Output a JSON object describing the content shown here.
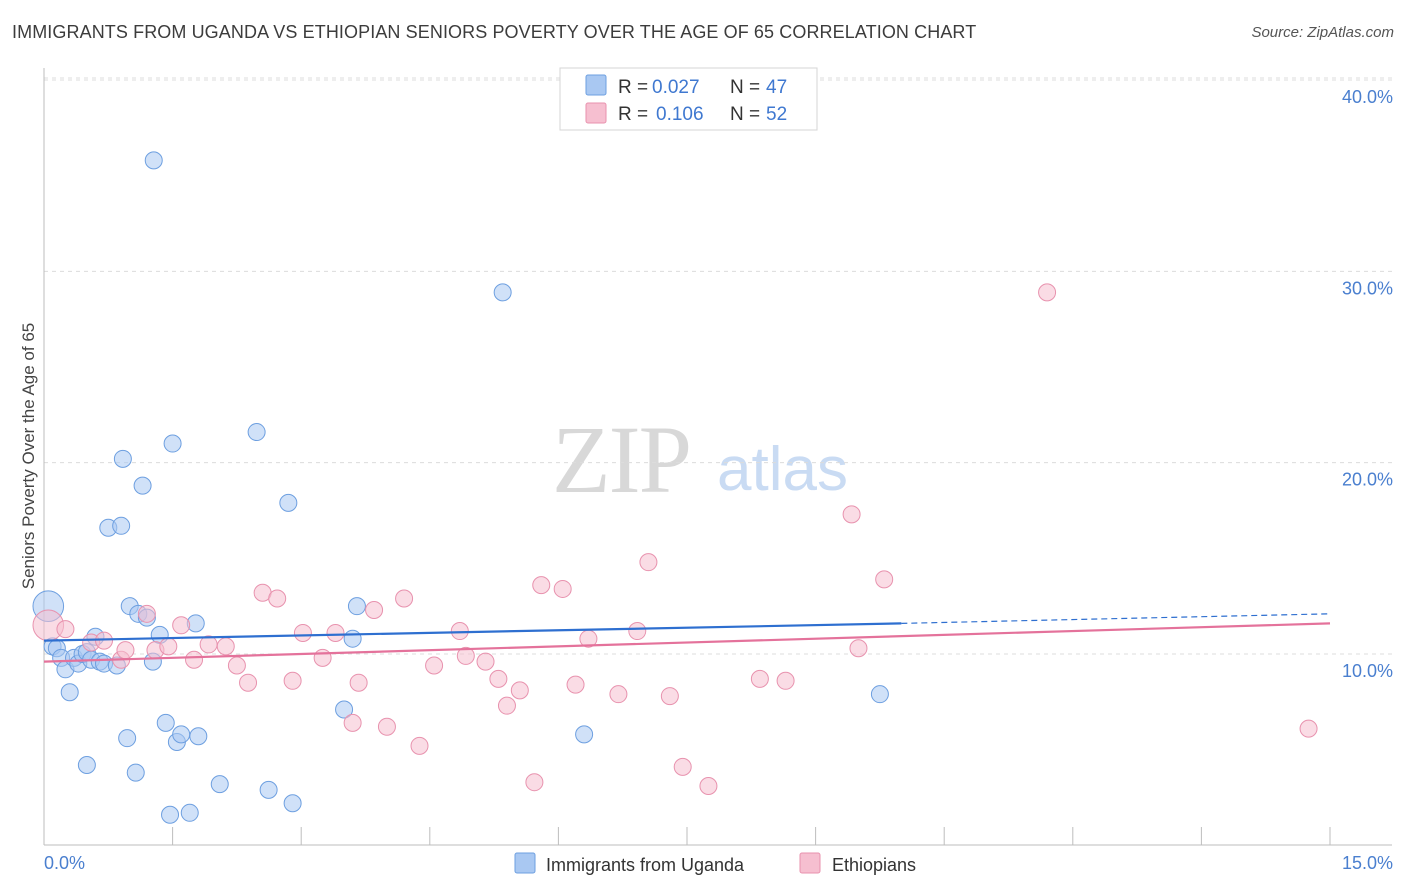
{
  "title": "IMMIGRANTS FROM UGANDA VS ETHIOPIAN SENIORS POVERTY OVER THE AGE OF 65 CORRELATION CHART",
  "source": "Source: ZipAtlas.com",
  "watermark": {
    "part1": "ZIP",
    "part2": "atlas"
  },
  "colors": {
    "blue_fill": "#a9c8f2",
    "blue_stroke": "#6d9fe0",
    "blue_line": "#2e6fd0",
    "pink_fill": "#f6bfd0",
    "pink_stroke": "#e892ae",
    "pink_line": "#e4729b",
    "tick_text": "#4a7fcf",
    "grid": "#dcdcdc"
  },
  "legend": {
    "rows": [
      {
        "r_label": "R =",
        "r_value": "0.027",
        "n_label": "N =",
        "n_value": "47"
      },
      {
        "r_label": "R =",
        "r_value": "0.106",
        "n_label": "N =",
        "n_value": "52"
      }
    ]
  },
  "bottom_legend": {
    "series1": "Immigrants from Uganda",
    "series2": "Ethiopians"
  },
  "chart_data": {
    "type": "scatter",
    "title": "IMMIGRANTS FROM UGANDA VS ETHIOPIAN SENIORS POVERTY OVER THE AGE OF 65 CORRELATION CHART",
    "xlabel": "",
    "ylabel": "Seniors Poverty Over the Age of 65",
    "xlim": [
      0,
      15
    ],
    "ylim": [
      0,
      41.5
    ],
    "x_tick_labels": [
      {
        "value": 0,
        "label": "0.0%"
      },
      {
        "value": 15,
        "label": "15.0%"
      }
    ],
    "x_minor_ticks": [
      1.5,
      3.0,
      4.5,
      6.0,
      7.5,
      9.0,
      10.5,
      12.0,
      13.5,
      15.0
    ],
    "y_ticks": [
      {
        "value": 10,
        "label": "10.0%"
      },
      {
        "value": 20,
        "label": "20.0%"
      },
      {
        "value": 30,
        "label": "30.0%"
      },
      {
        "value": 40,
        "label": "40.0%"
      }
    ],
    "grid": true,
    "series": [
      {
        "name": "Immigrants from Uganda",
        "color": "blue",
        "trend": {
          "x0": 0,
          "y0": 10.7,
          "x1": 10.0,
          "y1": 11.6,
          "dash_x1": 15.0,
          "dash_y1": 12.1
        },
        "points": [
          [
            0.05,
            12.5,
            1.8
          ],
          [
            0.1,
            10.4,
            1
          ],
          [
            0.15,
            10.3,
            1
          ],
          [
            0.2,
            9.8,
            1
          ],
          [
            0.25,
            9.2,
            1
          ],
          [
            0.3,
            8.0,
            1
          ],
          [
            0.35,
            9.8,
            1
          ],
          [
            0.4,
            9.5,
            1
          ],
          [
            0.45,
            10.0,
            1
          ],
          [
            0.5,
            10.1,
            1
          ],
          [
            0.5,
            4.2,
            1
          ],
          [
            0.55,
            9.7,
            1
          ],
          [
            0.6,
            10.9,
            1
          ],
          [
            0.65,
            9.6,
            1
          ],
          [
            0.7,
            9.5,
            1
          ],
          [
            0.75,
            16.6,
            1
          ],
          [
            0.85,
            9.4,
            1
          ],
          [
            0.9,
            16.7,
            1
          ],
          [
            0.92,
            20.2,
            1
          ],
          [
            0.97,
            5.6,
            1
          ],
          [
            1.0,
            12.5,
            1
          ],
          [
            1.07,
            3.8,
            1
          ],
          [
            1.1,
            12.1,
            1
          ],
          [
            1.15,
            18.8,
            1
          ],
          [
            1.2,
            11.9,
            1
          ],
          [
            1.27,
            9.6,
            1
          ],
          [
            1.28,
            35.8,
            1
          ],
          [
            1.35,
            11.0,
            1
          ],
          [
            1.42,
            6.4,
            1
          ],
          [
            1.47,
            1.6,
            1
          ],
          [
            1.5,
            21.0,
            1
          ],
          [
            1.55,
            5.4,
            1
          ],
          [
            1.6,
            5.8,
            1
          ],
          [
            1.7,
            1.7,
            1
          ],
          [
            1.77,
            11.6,
            1
          ],
          [
            1.8,
            5.7,
            1
          ],
          [
            2.05,
            3.2,
            1
          ],
          [
            2.48,
            21.6,
            1
          ],
          [
            2.62,
            2.9,
            1
          ],
          [
            2.85,
            17.9,
            1
          ],
          [
            2.9,
            2.2,
            1
          ],
          [
            3.5,
            7.1,
            1
          ],
          [
            3.6,
            10.8,
            1
          ],
          [
            3.65,
            12.5,
            1
          ],
          [
            5.35,
            28.9,
            1
          ],
          [
            6.3,
            5.8,
            1
          ],
          [
            9.75,
            7.9,
            1
          ]
        ]
      },
      {
        "name": "Ethiopians",
        "color": "pink",
        "trend": {
          "x0": 0,
          "y0": 9.6,
          "x1": 15.0,
          "y1": 11.6
        },
        "points": [
          [
            0.05,
            11.5,
            1.8
          ],
          [
            0.25,
            11.3,
            1
          ],
          [
            0.55,
            10.6,
            1
          ],
          [
            0.7,
            10.7,
            1
          ],
          [
            0.9,
            9.7,
            1
          ],
          [
            0.95,
            10.2,
            1
          ],
          [
            1.2,
            12.1,
            1
          ],
          [
            1.3,
            10.2,
            1
          ],
          [
            1.45,
            10.4,
            1
          ],
          [
            1.6,
            11.5,
            1
          ],
          [
            1.75,
            9.7,
            1
          ],
          [
            1.92,
            10.5,
            1
          ],
          [
            2.12,
            10.4,
            1
          ],
          [
            2.25,
            9.4,
            1
          ],
          [
            2.38,
            8.5,
            1
          ],
          [
            2.55,
            13.2,
            1
          ],
          [
            2.72,
            12.9,
            1
          ],
          [
            2.9,
            8.6,
            1
          ],
          [
            3.02,
            11.1,
            1
          ],
          [
            3.25,
            9.8,
            1
          ],
          [
            3.4,
            11.1,
            1
          ],
          [
            3.6,
            6.4,
            1
          ],
          [
            3.67,
            8.5,
            1
          ],
          [
            3.85,
            12.3,
            1
          ],
          [
            4.0,
            6.2,
            1
          ],
          [
            4.2,
            12.9,
            1
          ],
          [
            4.38,
            5.2,
            1
          ],
          [
            4.55,
            9.4,
            1
          ],
          [
            4.85,
            11.2,
            1
          ],
          [
            4.92,
            9.9,
            1
          ],
          [
            5.15,
            9.6,
            1
          ],
          [
            5.3,
            8.7,
            1
          ],
          [
            5.4,
            7.3,
            1
          ],
          [
            5.55,
            8.1,
            1
          ],
          [
            5.72,
            3.3,
            1
          ],
          [
            5.8,
            13.6,
            1
          ],
          [
            6.05,
            13.4,
            1
          ],
          [
            6.2,
            8.4,
            1
          ],
          [
            6.35,
            10.8,
            1
          ],
          [
            6.7,
            7.9,
            1
          ],
          [
            6.92,
            11.2,
            1
          ],
          [
            7.05,
            14.8,
            1
          ],
          [
            7.3,
            7.8,
            1
          ],
          [
            7.45,
            4.1,
            1
          ],
          [
            7.75,
            3.1,
            1
          ],
          [
            8.35,
            8.7,
            1
          ],
          [
            8.65,
            8.6,
            1
          ],
          [
            9.42,
            17.3,
            1
          ],
          [
            9.5,
            10.3,
            1
          ],
          [
            9.8,
            13.9,
            1
          ],
          [
            11.7,
            28.9,
            1
          ],
          [
            14.75,
            6.1,
            1
          ]
        ]
      }
    ]
  }
}
